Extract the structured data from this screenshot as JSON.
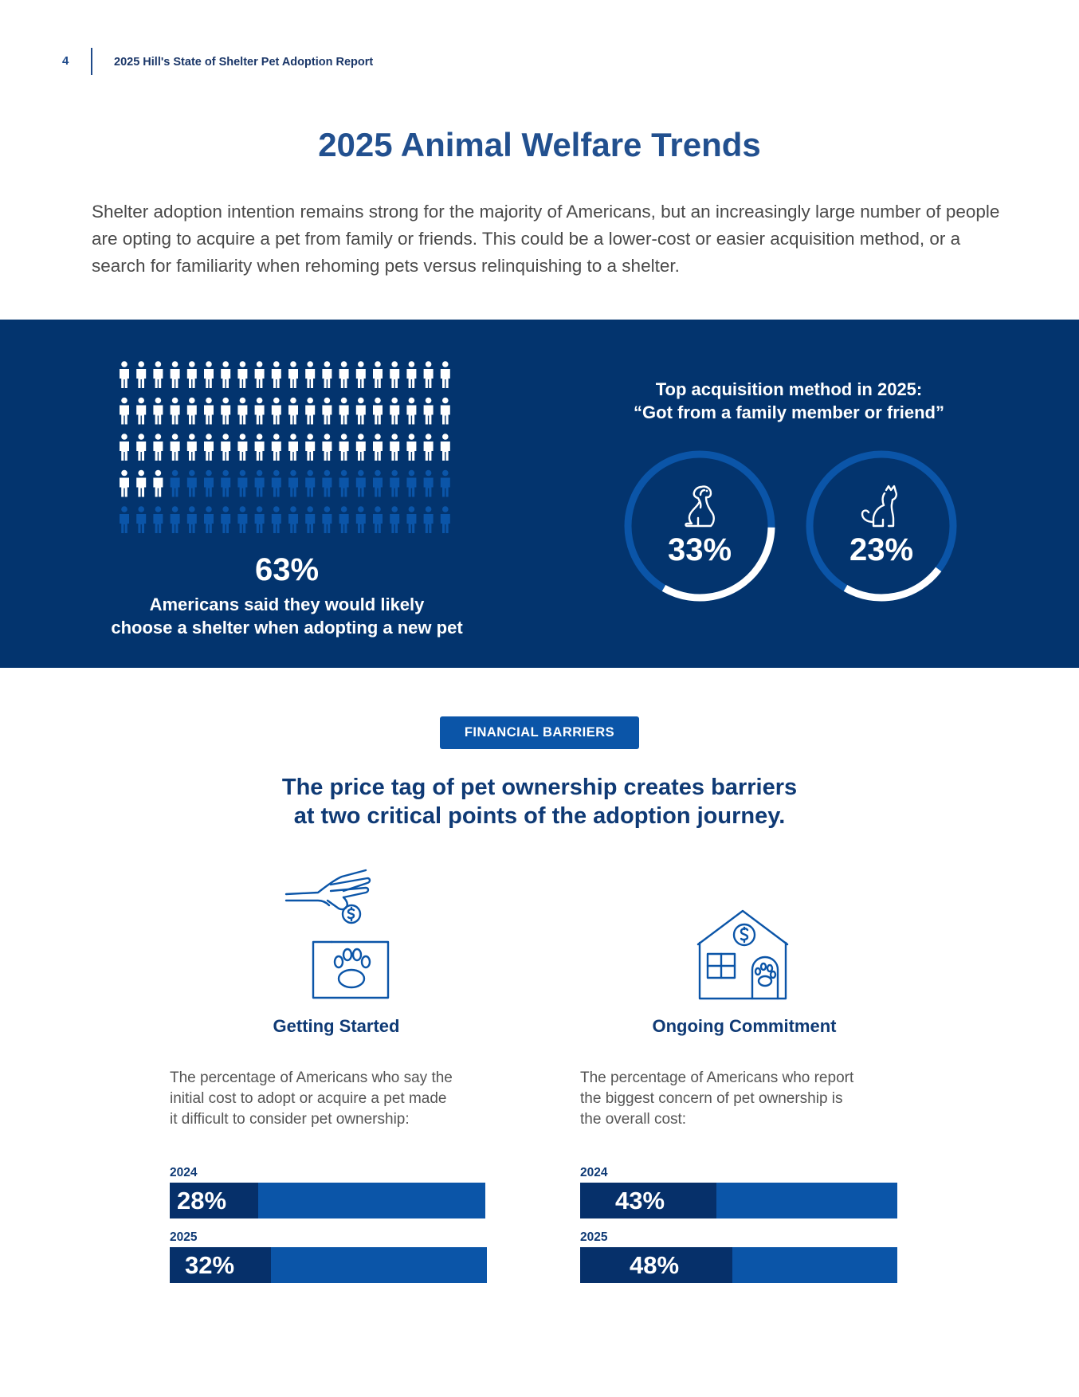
{
  "header": {
    "page_number": "4",
    "report_title": "2025 Hill's State of Shelter Pet Adoption Report"
  },
  "title": "2025 Animal Welfare Trends",
  "intro": "Shelter adoption intention remains strong for the majority of Americans, but an increasingly large number of people are opting to acquire a pet from family or friends. This could be a lower-cost or easier acquisition method, or a search for familiarity when rehoming pets versus relinquishing to a shelter.",
  "shelter_stat": {
    "value": "63%",
    "percent": 63,
    "caption_line1": "Americans said they would likely",
    "caption_line2": "choose a shelter when adopting a new pet",
    "icon": "person-icon"
  },
  "acquisition": {
    "heading_line1": "Top acquisition method in 2025:",
    "heading_line2": "“Got from a family member or friend”",
    "rings": [
      {
        "icon": "dog-icon",
        "value": "33%",
        "percent": 33
      },
      {
        "icon": "cat-icon",
        "value": "23%",
        "percent": 23
      }
    ]
  },
  "financial": {
    "pill": "FINANCIAL BARRIERS",
    "headline_line1": "The price tag of pet ownership creates barriers",
    "headline_line2": "at two critical points of the adoption journey.",
    "columns": [
      {
        "icon": "hand-coin-paw-box-icon",
        "title": "Getting Started",
        "desc_line1": "The percentage of Americans who say the",
        "desc_line2": "initial cost to adopt or acquire a pet made",
        "desc_line3": "it difficult to consider pet ownership:",
        "bars": [
          {
            "year": "2024",
            "value": "28%",
            "percent": 28
          },
          {
            "year": "2025",
            "value": "32%",
            "percent": 32
          }
        ]
      },
      {
        "icon": "house-coin-paw-icon",
        "title": "Ongoing Commitment",
        "desc_line1": "The percentage of Americans who report",
        "desc_line2": "the biggest concern of pet ownership is",
        "desc_line3": "the overall cost:",
        "bars": [
          {
            "year": "2024",
            "value": "43%",
            "percent": 43
          },
          {
            "year": "2025",
            "value": "48%",
            "percent": 48
          }
        ]
      }
    ]
  },
  "colors": {
    "navy": "#03346e",
    "blue": "#0b55a8",
    "dark_fill": "#06306a",
    "title_blue": "#22508f"
  }
}
